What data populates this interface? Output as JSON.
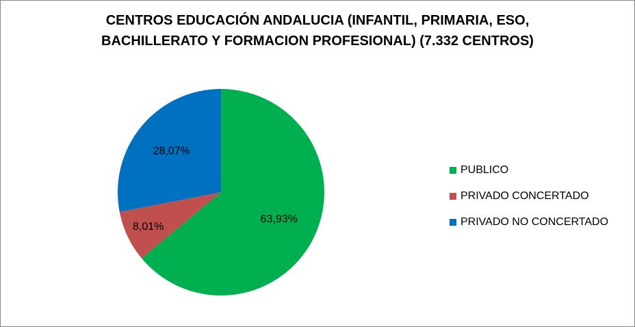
{
  "chart_data": {
    "type": "pie",
    "title": "CENTROS EDUCACIÓN ANDALUCIA (INFANTIL, PRIMARIA, ESO, BACHILLERATO Y FORMACION PROFESIONAL)   (7.332 CENTROS)",
    "title_lines": [
      "CENTROS EDUCACIÓN ANDALUCIA (INFANTIL, PRIMARIA, ESO,",
      "BACHILLERATO Y FORMACION PROFESIONAL)   (7.332 CENTROS)"
    ],
    "categories": [
      "PUBLICO",
      "PRIVADO CONCERTADO",
      "PRIVADO NO CONCERTADO"
    ],
    "values": [
      63.93,
      8.01,
      28.07
    ],
    "data_labels": [
      "63,93%",
      "8,01%",
      "28,07%"
    ],
    "colors": [
      "#00b050",
      "#c0504d",
      "#0070c0"
    ],
    "start": "12 o'clock",
    "direction": "clockwise",
    "legend_position": "right"
  }
}
